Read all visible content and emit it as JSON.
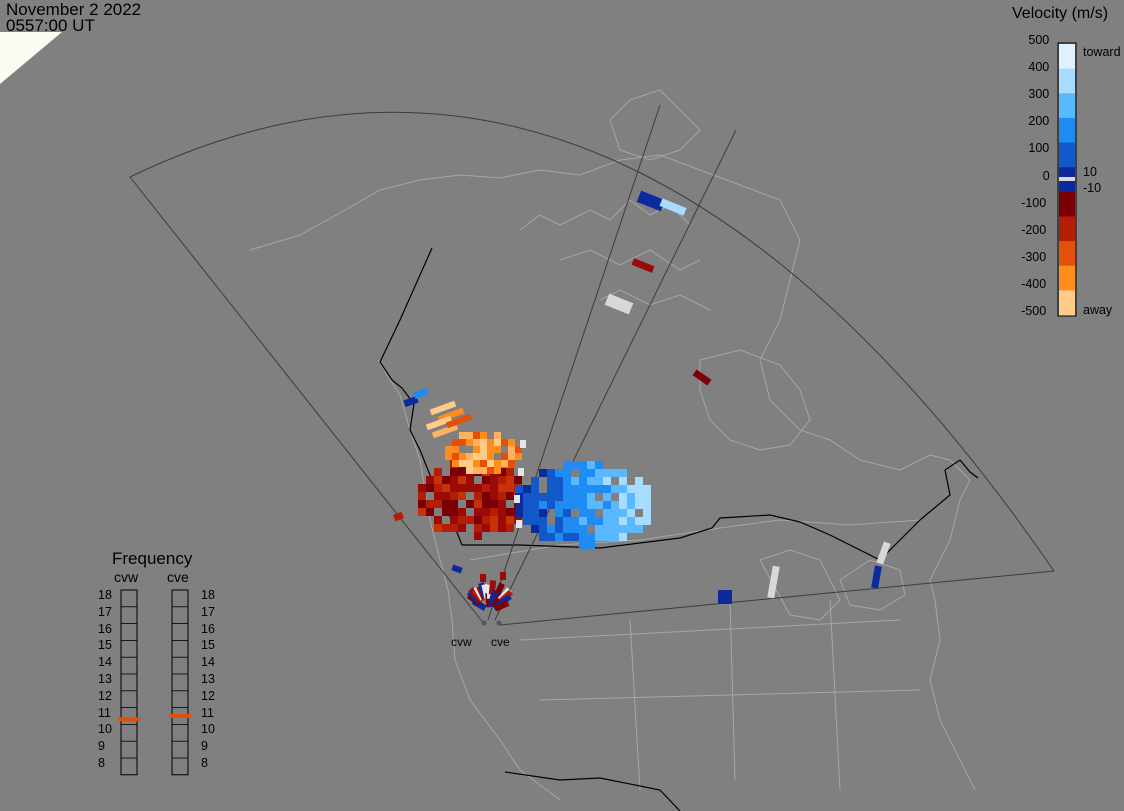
{
  "header": {
    "date": "November  2 2022",
    "time": "0557:00 UT"
  },
  "velocity_legend": {
    "title": "Velocity (m/s)",
    "ticks": [
      "500",
      "400",
      "300",
      "200",
      "100",
      "0",
      "-100",
      "-200",
      "-300",
      "-400",
      "-500"
    ],
    "label_toward": "toward",
    "label_away": "away",
    "label_pos10": "10",
    "label_neg10": "-10",
    "colors": [
      "#dff0ff",
      "#a8dcff",
      "#5ab8ff",
      "#1e8cf2",
      "#1258c8",
      "#0a2a9e",
      "#7a0006",
      "#b51e06",
      "#e2500a",
      "#ff8d1c",
      "#ffcc88"
    ]
  },
  "frequency_panel": {
    "title": "Frequency",
    "radars": [
      {
        "name": "cvw",
        "freq_mhz": 10.8
      },
      {
        "name": "cve",
        "freq_mhz": 11.0
      }
    ],
    "scale": [
      "18",
      "17",
      "16",
      "15",
      "14",
      "13",
      "12",
      "11",
      "10",
      "9",
      "8"
    ],
    "marker_color": "#e2500a"
  },
  "radar_sites": [
    {
      "name": "cvw"
    },
    {
      "name": "cve"
    }
  ]
}
